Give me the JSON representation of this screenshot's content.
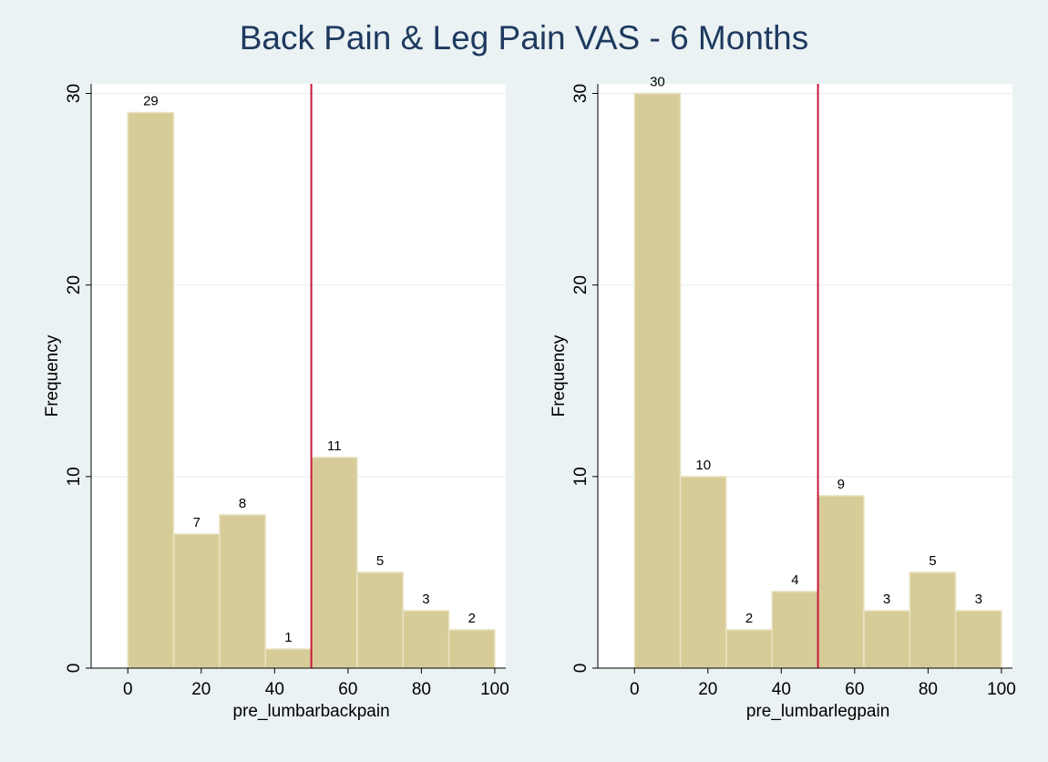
{
  "title": "Back Pain & Leg Pain VAS - 6 Months",
  "colors": {
    "background": "#eaf2f3",
    "plot_background": "#ffffff",
    "bar_fill": "#d7cc98",
    "bar_stroke": "#e9e3c4",
    "reference_line": "#c8193c",
    "gridline": "#eaf2f3",
    "title": "#1f3a5f",
    "text": "#000000"
  },
  "chart_data": [
    {
      "type": "bar",
      "variant": "histogram",
      "xlabel": "pre_lumbarbackpain",
      "ylabel": "Frequency",
      "xlim": [
        -10,
        103
      ],
      "ylim": [
        0,
        30.5
      ],
      "xticks": [
        0,
        20,
        40,
        60,
        80,
        100
      ],
      "yticks": [
        0,
        10,
        20,
        30
      ],
      "grid": true,
      "bins": [
        {
          "start": 0,
          "end": 12.5,
          "value": 29
        },
        {
          "start": 12.5,
          "end": 25,
          "value": 7
        },
        {
          "start": 25,
          "end": 37.5,
          "value": 8
        },
        {
          "start": 37.5,
          "end": 50,
          "value": 1
        },
        {
          "start": 50,
          "end": 62.5,
          "value": 11
        },
        {
          "start": 62.5,
          "end": 75,
          "value": 5
        },
        {
          "start": 75,
          "end": 87.5,
          "value": 3
        },
        {
          "start": 87.5,
          "end": 100,
          "value": 2
        }
      ],
      "reference_line_x": 50
    },
    {
      "type": "bar",
      "variant": "histogram",
      "xlabel": "pre_lumbarlegpain",
      "ylabel": "Frequency",
      "xlim": [
        -10,
        103
      ],
      "ylim": [
        0,
        30.5
      ],
      "xticks": [
        0,
        20,
        40,
        60,
        80,
        100
      ],
      "yticks": [
        0,
        10,
        20,
        30
      ],
      "grid": true,
      "bins": [
        {
          "start": 0,
          "end": 12.5,
          "value": 30
        },
        {
          "start": 12.5,
          "end": 25,
          "value": 10
        },
        {
          "start": 25,
          "end": 37.5,
          "value": 2
        },
        {
          "start": 37.5,
          "end": 50,
          "value": 4
        },
        {
          "start": 50,
          "end": 62.5,
          "value": 9
        },
        {
          "start": 62.5,
          "end": 75,
          "value": 3
        },
        {
          "start": 75,
          "end": 87.5,
          "value": 5
        },
        {
          "start": 87.5,
          "end": 100,
          "value": 3
        }
      ],
      "reference_line_x": 50
    }
  ]
}
